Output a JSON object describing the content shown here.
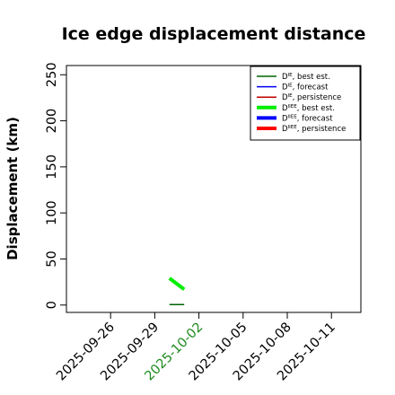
{
  "chart_data": {
    "type": "line",
    "title": "Ice edge displacement distance",
    "xlabel": "",
    "ylabel": "Displacement (km)",
    "ylim": [
      -8,
      260
    ],
    "yticks": [
      0,
      50,
      100,
      150,
      200,
      250
    ],
    "xlim": [
      "2025-09-23",
      "2025-10-13"
    ],
    "xticks": [
      {
        "date": "2025-09-26",
        "label": "2025-09-26",
        "color": "#000000"
      },
      {
        "date": "2025-09-29",
        "label": "2025-09-29",
        "color": "#000000"
      },
      {
        "date": "2025-10-02",
        "label": "2025-10-02",
        "color": "#1e8a1e"
      },
      {
        "date": "2025-10-05",
        "label": "2025-10-05",
        "color": "#000000"
      },
      {
        "date": "2025-10-08",
        "label": "2025-10-08",
        "color": "#000000"
      },
      {
        "date": "2025-10-11",
        "label": "2025-10-11",
        "color": "#000000"
      }
    ],
    "grid": false,
    "legend_position": "top-right",
    "series": [
      {
        "name": "D^IE, best est.",
        "base": "D",
        "sup": "IE",
        "rest": ", best est.",
        "color": "#006400",
        "width": 1.5,
        "points": [
          [
            "2025-09-30",
            0.6
          ],
          [
            "2025-10-01",
            0.6
          ]
        ]
      },
      {
        "name": "D^IE, forecast",
        "base": "D",
        "sup": "IE",
        "rest": ", forecast",
        "color": "#0000ff",
        "width": 1.5,
        "points": []
      },
      {
        "name": "D^IE, persistence",
        "base": "D",
        "sup": "IE",
        "rest": ", persistence",
        "color": "#c00000",
        "width": 1.5,
        "points": []
      },
      {
        "name": "D^IIEE, best est.",
        "base": "D",
        "sup": "IIEE",
        "rest": ", best est.",
        "color": "#00ee00",
        "width": 4,
        "points": [
          [
            "2025-09-30",
            29
          ],
          [
            "2025-10-01",
            17
          ]
        ]
      },
      {
        "name": "D^IIEE, forecast",
        "base": "D",
        "sup": "IIEE",
        "rest": ", forecast",
        "color": "#0000ff",
        "width": 4,
        "points": []
      },
      {
        "name": "D^IIEE, persistence",
        "base": "D",
        "sup": "IIEE",
        "rest": ", persistence",
        "color": "#ff0000",
        "width": 4,
        "points": []
      }
    ]
  }
}
